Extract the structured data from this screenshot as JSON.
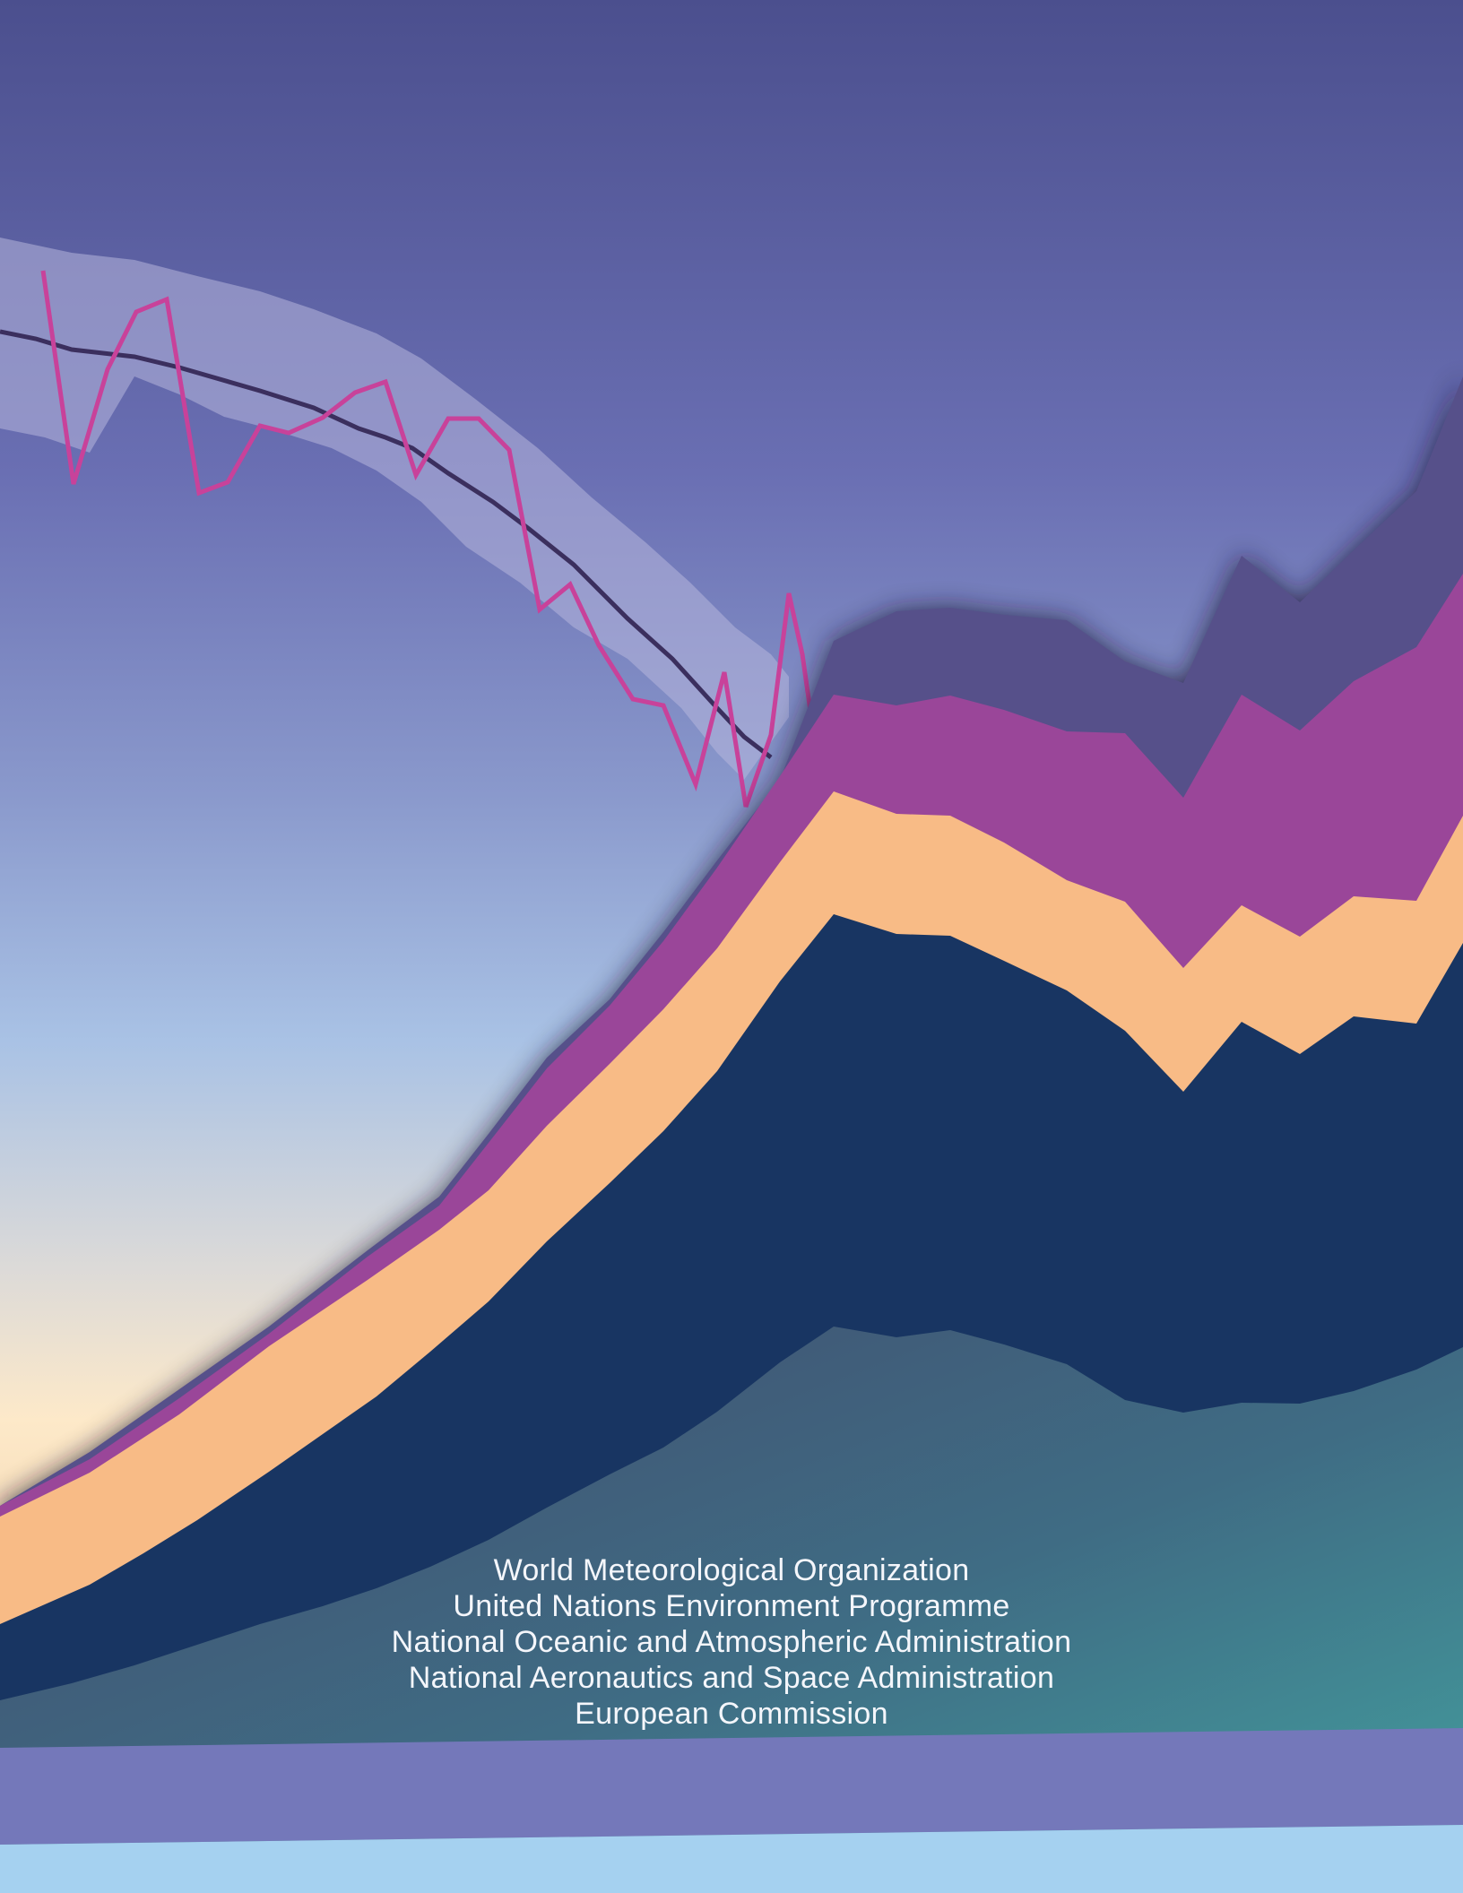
{
  "credits": {
    "organizations": [
      "World Meteorological Organization",
      "United Nations Environment Programme",
      "National Oceanic and Atmospheric Administration",
      "National Aeronautics and Space Administration",
      "European Commission"
    ]
  },
  "colors": {
    "sky_top": "#4b4f8e",
    "sky_mid": "#7a85c1",
    "glow": "#fde9c9",
    "band": "#9aa0d2",
    "band_line": "#3b2f5e",
    "magenta_line": "#c8429a",
    "layer_purple": "#56508a",
    "layer_magenta": "#9a4699",
    "layer_peach": "#f8bb86",
    "layer_navy": "#183562",
    "layer_teal_start": "#414a6c",
    "layer_teal_end": "#43a1a0",
    "stripe_lavender": "#7478ba",
    "stripe_sky": "#a5d1f0"
  }
}
